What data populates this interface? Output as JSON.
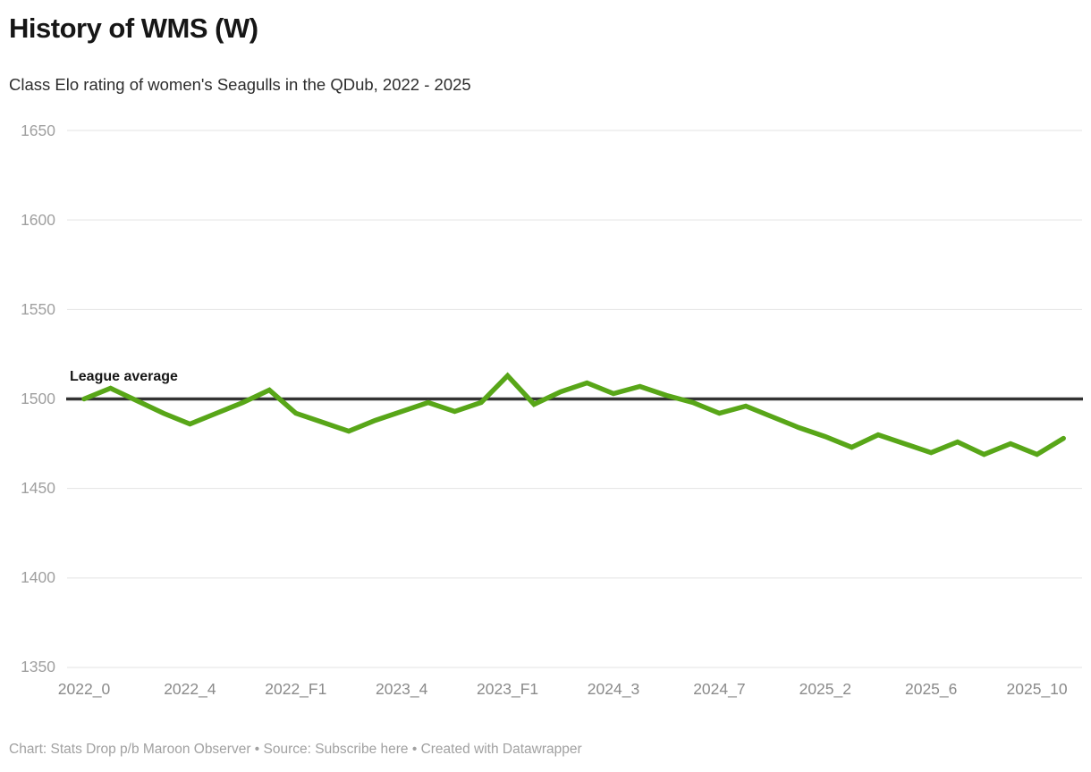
{
  "header": {
    "title": "History of WMS (W)",
    "subtitle": "Class Elo rating of women's Seagulls in the QDub, 2022 - 2025"
  },
  "annotation": {
    "league_average_label": "League average"
  },
  "footer": {
    "credit_prefix": "Chart: Stats Drop p/b Maroon Observer • Source: ",
    "source_link": "Subscribe here",
    "credit_suffix": " • Created with Datawrapper"
  },
  "colors": {
    "line_green": "#58a618",
    "reference_black": "#333333",
    "grid_gray": "#e3e3e3",
    "y_axis_text": "#a0a0a0",
    "x_axis_text": "#8a8a8a",
    "footer_text": "#a1a1a1"
  },
  "chart_data": {
    "type": "line",
    "title": "History of WMS (W)",
    "subtitle": "Class Elo rating of women's Seagulls in the QDub, 2022 - 2025",
    "xlabel": "",
    "ylabel": "",
    "ylim": [
      1350,
      1650
    ],
    "yticks": [
      1650,
      1600,
      1550,
      1500,
      1450,
      1400,
      1350
    ],
    "grid": "horizontal",
    "legend_position": "none",
    "x_tick_positions": [
      0,
      4,
      8,
      12,
      16,
      20,
      24,
      28,
      32,
      36
    ],
    "x_tick_labels": [
      "2022_0",
      "2022_4",
      "2022_F1",
      "2023_4",
      "2023_F1",
      "2024_3",
      "2024_7",
      "2025_2",
      "2025_6",
      "2025_10"
    ],
    "n_points": 38,
    "series": [
      {
        "name": "WMS (W) class Elo rating",
        "color": "#58a618",
        "values": [
          1500,
          1506,
          1499,
          1492,
          1486,
          1492,
          1498,
          1505,
          1492,
          1487,
          1482,
          1488,
          1493,
          1498,
          1493,
          1498,
          1513,
          1497,
          1504,
          1509,
          1503,
          1507,
          1502,
          1498,
          1492,
          1496,
          1490,
          1484,
          1479,
          1473,
          1480,
          1475,
          1470,
          1476,
          1469,
          1475,
          1469,
          1478
        ]
      }
    ],
    "reference_line": {
      "label": "League average",
      "value": 1500,
      "color": "#333333"
    }
  }
}
